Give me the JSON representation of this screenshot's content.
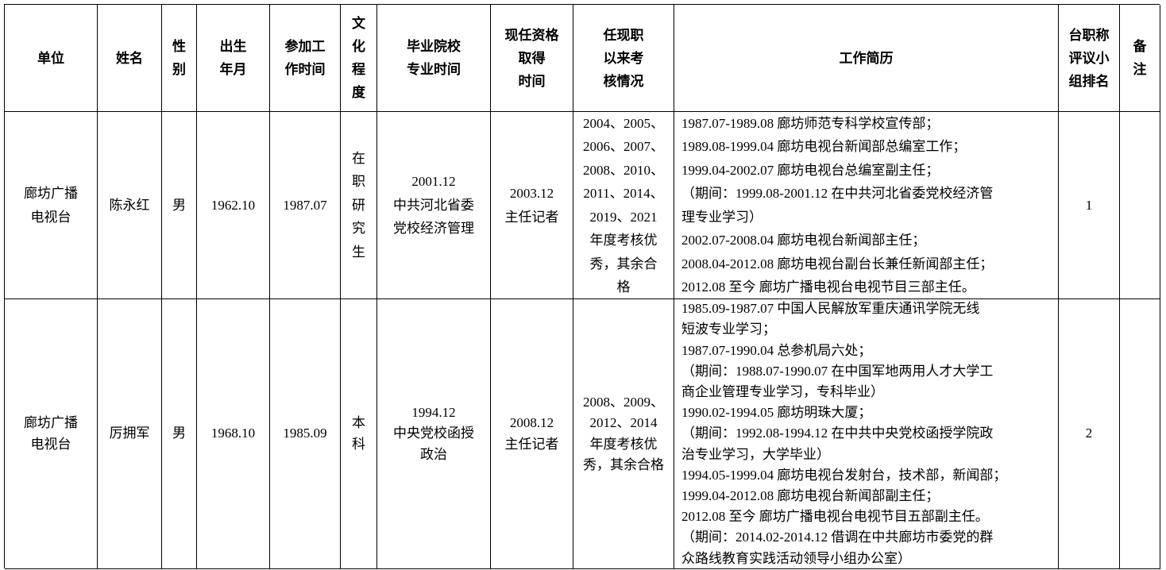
{
  "table": {
    "header": [
      "单位",
      "姓名",
      [
        "性",
        "别"
      ],
      [
        "出生",
        "年月"
      ],
      [
        "参加工",
        "作时间"
      ],
      [
        "文",
        "化",
        "程",
        "度"
      ],
      [
        "毕业院校",
        "专业时间"
      ],
      [
        "现任资格",
        "取得",
        "时间"
      ],
      [
        "任现职",
        "以来考",
        "核情况"
      ],
      "工作简历",
      [
        "台职称",
        "评议小",
        "组排名"
      ],
      [
        "备",
        "注"
      ]
    ],
    "rows": [
      [
        [
          "廊坊广播",
          "电视台"
        ],
        "陈永红",
        "男",
        "1962.10",
        "1987.07",
        [
          "在",
          "职",
          "研",
          "究",
          "生"
        ],
        [
          "2001.12",
          "中共河北省委",
          "党校经济管理"
        ],
        [
          "2003.12",
          "主任记者"
        ],
        [
          "2004、2005、",
          "2006、2007、",
          "2008、2010、",
          "2011、2014、",
          "2019、2021",
          "年度考核优",
          "秀，其余合",
          "格"
        ],
        [
          "1987.07-1989.08 廊坊师范专科学校宣传部；",
          "1989.08-1999.04 廊坊电视台新闻部总编室工作；",
          "1999.04-2002.07 廊坊电视台总编室副主任；",
          "（期间：1999.08-2001.12 在中共河北省委党校经济管",
          "理专业学习）",
          "2002.07-2008.04 廊坊电视台新闻部主任；",
          "2008.04-2012.08 廊坊电视台副台长兼任新闻部主任；",
          "2012.08 至今 廊坊广播电视台电视节目三部主任。"
        ],
        "1"
      ],
      [
        [
          "廊坊广播",
          "电视台"
        ],
        "厉拥军",
        "男",
        "1968.10",
        "1985.09",
        [
          "本",
          "科"
        ],
        [
          "1994.12",
          "中央党校函授",
          "政治"
        ],
        [
          "2008.12",
          "主任记者"
        ],
        [
          "2008、2009、",
          "2012、2014",
          "年度考核优",
          "秀，其余合格"
        ],
        [
          "1985.09-1987.07 中国人民解放军重庆通讯学院无线",
          "短波专业学习；",
          "1987.07-1990.04 总参机局六处；",
          "（期间：1988.07-1990.07 在中国军地两用人才大学工",
          "商企业管理专业学习，专科毕业）",
          "1990.02-1994.05 廊坊明珠大厦；",
          "（期间：1992.08-1994.12 在中共中央党校函授学院政",
          "治专业学习，大学毕业）",
          "1994.05-1999.04 廊坊电视台发射台，技术部，新闻部；",
          "1999.04-2012.08 廊坊电视台新闻部副主任；",
          "2012.08 至今 廊坊广播电视台电视节目五部副主任。",
          "（期间：2014.02-2014.12 借调在中共廊坊市委党的群",
          "众路线教育实践活动领导小组办公室）"
        ],
        "2"
      ]
    ]
  }
}
